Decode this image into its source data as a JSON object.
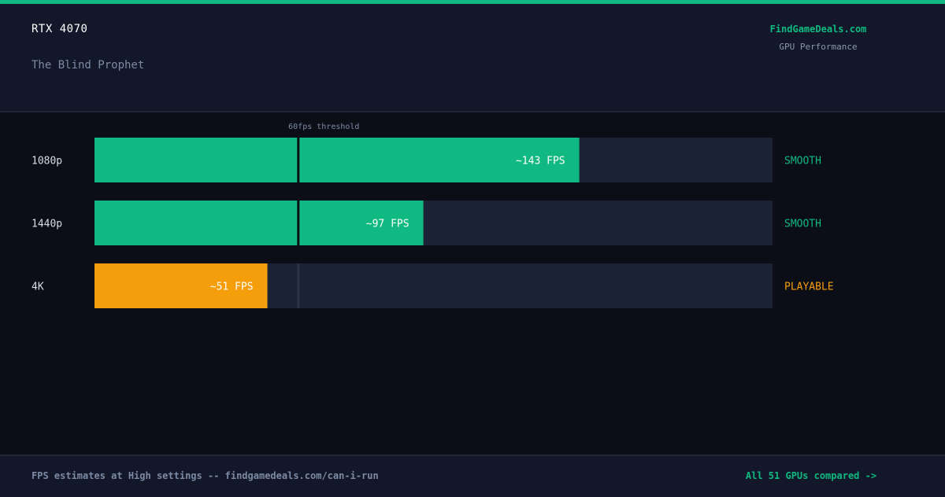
{
  "header": {
    "gpu": "RTX 4070",
    "game": "The Blind Prophet",
    "brand": "FindGameDeals.com",
    "brand_sub": "GPU Performance"
  },
  "footer": {
    "note": "FPS estimates at High settings -- findgamedeals.com/can-i-run",
    "link": "All 51 GPUs compared ->"
  },
  "colors": {
    "smooth": "#10b981",
    "playable": "#f59e0b",
    "track": "#1b2235",
    "threshold": "#2a3245",
    "accent": "#10b981"
  },
  "chart_data": {
    "type": "bar",
    "orientation": "horizontal",
    "categories": [
      "1080p",
      "1440p",
      "4K"
    ],
    "values": [
      143,
      97,
      51
    ],
    "value_labels": [
      "~143 FPS",
      "~97 FPS",
      "~51 FPS"
    ],
    "ratings": [
      "SMOOTH",
      "SMOOTH",
      "PLAYABLE"
    ],
    "xlim": [
      0,
      200
    ],
    "threshold": {
      "value": 60,
      "label": "60fps threshold"
    }
  }
}
